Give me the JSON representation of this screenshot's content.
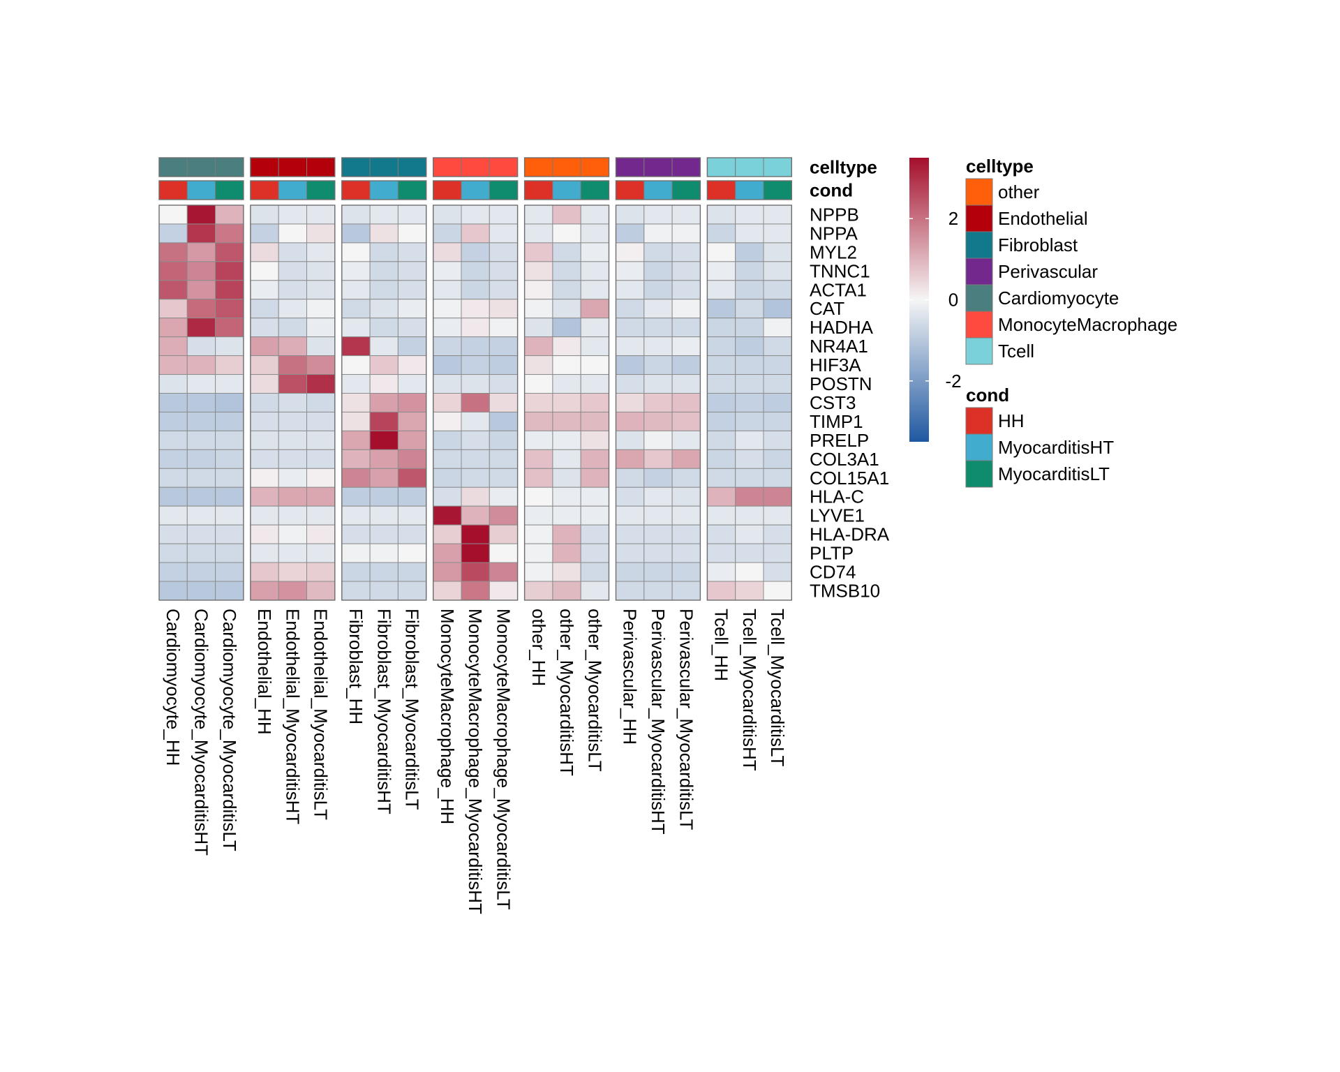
{
  "chart_data": {
    "type": "heatmap",
    "title": "",
    "columns": [
      "Cardiomyocyte_HH",
      "Cardiomyocyte_MyocarditisHT",
      "Cardiomyocyte_MyocarditisLT",
      "Endothelial_HH",
      "Endothelial_MyocarditisHT",
      "Endothelial_MyocarditisLT",
      "Fibroblast_HH",
      "Fibroblast_MyocarditisHT",
      "Fibroblast_MyocarditisLT",
      "MonocyteMacrophage_HH",
      "MonocyteMacrophage_MyocarditisHT",
      "MonocyteMacrophage_MyocarditisLT",
      "other_HH",
      "other_MyocarditisHT",
      "other_MyocarditisLT",
      "Perivascular_HH",
      "Perivascular_MyocarditisHT",
      "Perivascular_MyocarditisLT",
      "Tcell_HH",
      "Tcell_MyocarditisHT",
      "Tcell_MyocarditisLT"
    ],
    "column_groups": [
      "Cardiomyocyte",
      "Endothelial",
      "Fibroblast",
      "MonocyteMacrophage",
      "other",
      "Perivascular",
      "Tcell"
    ],
    "columns_per_group": 3,
    "cond_order": [
      "HH",
      "MyocarditisHT",
      "MyocarditisLT"
    ],
    "rows": [
      "NPPB",
      "NPPA",
      "MYL2",
      "TNNC1",
      "ACTA1",
      "CAT",
      "HADHA",
      "NR4A1",
      "HIF3A",
      "POSTN",
      "CST3",
      "TIMP1",
      "PRELP",
      "COL3A1",
      "COL15A1",
      "HLA-C",
      "LYVE1",
      "HLA-DRA",
      "PLTP",
      "CD74",
      "TMSB10"
    ],
    "values": [
      [
        0.0,
        3.4,
        1.0,
        -0.4,
        -0.3,
        -0.3,
        -0.4,
        -0.3,
        -0.3,
        -0.4,
        -0.3,
        -0.3,
        -0.3,
        0.8,
        -0.3,
        -0.4,
        -0.3,
        -0.3,
        -0.4,
        -0.3,
        -0.3
      ],
      [
        -0.8,
        2.9,
        1.9,
        -0.8,
        0.0,
        0.3,
        -1.0,
        0.3,
        0.0,
        -0.7,
        0.7,
        -0.3,
        -0.3,
        0.0,
        -0.3,
        -0.9,
        -0.1,
        -0.1,
        -0.7,
        -0.3,
        -0.3
      ],
      [
        2.0,
        1.4,
        2.4,
        0.4,
        -0.5,
        -0.3,
        0.0,
        -0.6,
        -0.5,
        0.4,
        -0.8,
        -0.5,
        0.7,
        -0.6,
        -0.2,
        0.1,
        -0.6,
        -0.5,
        0.0,
        -0.9,
        -0.4
      ],
      [
        2.2,
        1.7,
        2.7,
        0.0,
        -0.5,
        -0.4,
        -0.2,
        -0.6,
        -0.5,
        -0.2,
        -0.7,
        -0.5,
        0.3,
        -0.6,
        -0.3,
        -0.2,
        -0.7,
        -0.5,
        -0.2,
        -0.7,
        -0.4
      ],
      [
        2.4,
        1.5,
        2.7,
        -0.2,
        -0.5,
        -0.4,
        -0.3,
        -0.6,
        -0.5,
        -0.3,
        -0.7,
        -0.5,
        0.1,
        -0.6,
        -0.3,
        -0.3,
        -0.7,
        -0.5,
        -0.3,
        -0.7,
        -0.6
      ],
      [
        0.7,
        2.1,
        2.4,
        -0.6,
        -0.3,
        -0.1,
        -0.6,
        -0.4,
        -0.2,
        -0.1,
        0.2,
        0.3,
        -0.1,
        -0.4,
        1.2,
        -0.6,
        -0.3,
        -0.1,
        -1.0,
        -0.6,
        -1.1
      ],
      [
        1.2,
        3.1,
        2.2,
        -0.5,
        -0.6,
        -0.2,
        -0.3,
        -0.6,
        -0.5,
        -0.2,
        0.2,
        -0.1,
        -0.4,
        -1.1,
        -0.3,
        -0.6,
        -0.6,
        -0.6,
        -0.7,
        -0.7,
        -0.1
      ],
      [
        1.1,
        -0.5,
        -0.4,
        1.3,
        1.1,
        -0.4,
        2.9,
        -0.3,
        -0.8,
        -0.7,
        -0.8,
        -0.8,
        1.0,
        0.2,
        -0.3,
        -0.3,
        -0.3,
        -0.2,
        -0.7,
        -0.9,
        -0.6
      ],
      [
        1.0,
        1.0,
        0.6,
        0.6,
        2.0,
        1.6,
        0.0,
        0.7,
        0.2,
        -1.0,
        -0.8,
        -0.9,
        0.3,
        0.0,
        0.0,
        -1.0,
        -0.7,
        -0.9,
        -0.7,
        -0.7,
        -0.7
      ],
      [
        -0.4,
        -0.3,
        -0.3,
        0.4,
        2.5,
        3.0,
        -0.3,
        0.2,
        -0.3,
        -0.4,
        -0.4,
        -0.5,
        0.0,
        -0.3,
        -0.3,
        -0.5,
        -0.4,
        -0.4,
        -0.6,
        -0.6,
        -0.6
      ],
      [
        -1.0,
        -1.0,
        -1.1,
        -0.6,
        -0.5,
        -0.6,
        0.3,
        1.3,
        1.5,
        0.5,
        2.0,
        0.4,
        0.5,
        0.5,
        0.7,
        0.4,
        0.7,
        0.8,
        -0.9,
        -0.8,
        -0.9
      ],
      [
        -0.9,
        -0.9,
        -0.9,
        -0.5,
        -0.5,
        -0.5,
        0.3,
        2.7,
        1.2,
        0.1,
        -0.3,
        -1.0,
        0.9,
        0.9,
        0.9,
        1.0,
        0.9,
        0.8,
        -0.8,
        -0.7,
        -0.7
      ],
      [
        -0.6,
        -0.6,
        -0.6,
        -0.4,
        -0.4,
        -0.4,
        1.2,
        3.5,
        1.3,
        -0.7,
        -0.5,
        -0.7,
        -0.2,
        -0.2,
        0.3,
        -0.4,
        -0.1,
        -0.3,
        -0.6,
        -0.3,
        -0.5
      ],
      [
        -0.8,
        -0.8,
        -0.7,
        -0.5,
        -0.5,
        -0.5,
        1.0,
        1.3,
        1.7,
        -0.6,
        -0.6,
        -0.6,
        0.8,
        -0.3,
        1.0,
        1.2,
        0.7,
        1.2,
        -0.7,
        -0.5,
        -0.7
      ],
      [
        -0.6,
        -0.6,
        -0.6,
        0.1,
        -0.2,
        0.1,
        1.7,
        1.3,
        2.4,
        -0.7,
        -0.6,
        -0.6,
        0.8,
        -0.4,
        1.0,
        -0.6,
        -0.8,
        -0.6,
        -0.6,
        -0.6,
        -0.6
      ],
      [
        -1.0,
        -1.0,
        -1.0,
        1.0,
        1.2,
        1.2,
        -0.9,
        -0.9,
        -0.9,
        -0.5,
        0.4,
        -0.2,
        0.0,
        -0.2,
        -0.2,
        -0.5,
        -0.3,
        -0.4,
        1.0,
        1.7,
        1.7
      ],
      [
        -0.3,
        -0.3,
        -0.3,
        -0.3,
        -0.3,
        -0.3,
        -0.3,
        -0.3,
        -0.3,
        3.4,
        1.0,
        1.6,
        -0.2,
        -0.2,
        -0.2,
        -0.3,
        -0.3,
        -0.3,
        -0.3,
        -0.3,
        -0.3
      ],
      [
        -0.5,
        -0.5,
        -0.5,
        0.2,
        -0.1,
        0.2,
        -0.5,
        -0.5,
        -0.5,
        0.6,
        3.5,
        0.6,
        -0.1,
        1.0,
        -0.5,
        -0.5,
        -0.5,
        -0.5,
        -0.5,
        -0.3,
        -0.5
      ],
      [
        -0.6,
        -0.6,
        -0.6,
        -0.3,
        -0.3,
        -0.3,
        -0.1,
        -0.1,
        0.0,
        1.3,
        3.5,
        0.0,
        -0.1,
        1.0,
        -0.5,
        -0.5,
        -0.5,
        -0.5,
        -0.5,
        -0.5,
        -0.5
      ],
      [
        -0.8,
        -0.8,
        -0.8,
        0.7,
        0.5,
        0.6,
        -0.7,
        -0.7,
        -0.7,
        1.4,
        2.6,
        1.7,
        -0.1,
        0.3,
        -0.6,
        -0.7,
        -0.7,
        -0.7,
        -0.2,
        0.0,
        -0.5
      ],
      [
        -1.0,
        -1.0,
        -1.0,
        1.3,
        1.5,
        0.9,
        -0.6,
        -0.6,
        -0.6,
        0.5,
        1.9,
        0.2,
        0.6,
        0.9,
        -0.3,
        -0.6,
        -0.6,
        -0.6,
        0.7,
        0.5,
        0.0
      ]
    ],
    "color_scale": {
      "colors": [
        "#1f58a1",
        "#f5f5f5",
        "#a50f2c"
      ],
      "domain": [
        -3.5,
        0,
        3.5
      ],
      "ticks": [
        2,
        0,
        -2
      ],
      "tick_labels": [
        "2",
        "0",
        "-2"
      ]
    },
    "annotations": {
      "celltype_title": "celltype",
      "cond_title": "cond",
      "celltype_colors": {
        "other": "#ff5f0b",
        "Endothelial": "#b4000a",
        "Fibroblast": "#12788c",
        "Perivascular": "#72288c",
        "Cardiomyocyte": "#4b7f7f",
        "MonocyteMacrophage": "#ff4a40",
        "Tcell": "#7ad1da"
      },
      "cond_colors": {
        "HH": "#dd3127",
        "MyocarditisHT": "#42acce",
        "MyocarditisLT": "#0f8c6e"
      },
      "legend_celltype_order": [
        "other",
        "Endothelial",
        "Fibroblast",
        "Perivascular",
        "Cardiomyocyte",
        "MonocyteMacrophage",
        "Tcell"
      ],
      "legend_cond_order": [
        "HH",
        "MyocarditisHT",
        "MyocarditisLT"
      ]
    },
    "xlabel": "",
    "ylabel": ""
  }
}
